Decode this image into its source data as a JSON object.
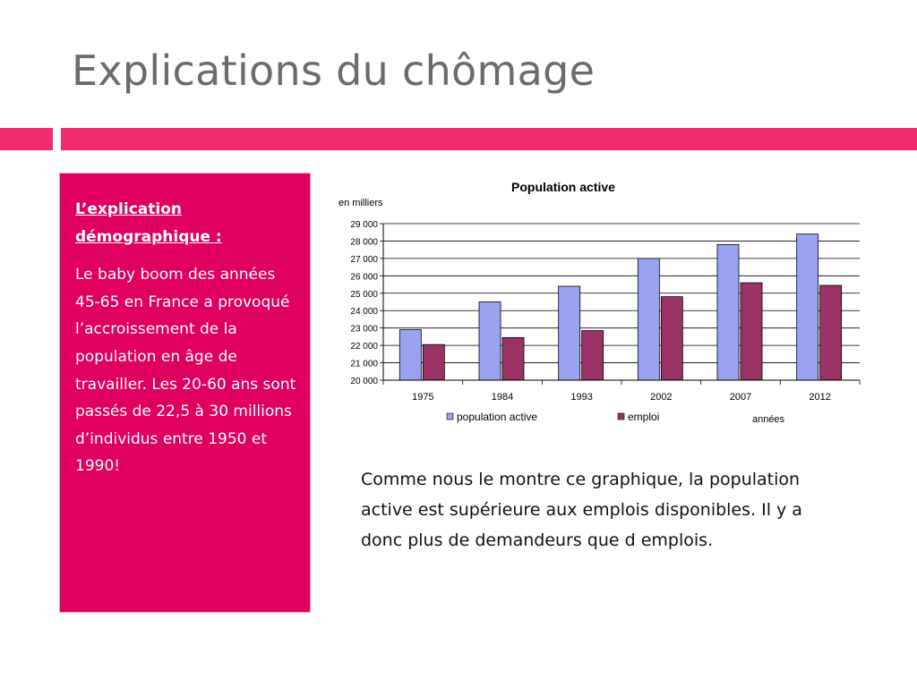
{
  "slide": {
    "title": "Explications du chômage"
  },
  "panel": {
    "heading": "L’explication démographique :",
    "body": "Le baby boom des années 45-65 en France a provoqué l’accroissement de la population en âge de travailler. Les 20-60 ans sont passés de 22,5 à 30 millions d’individus entre 1950 et 1990!"
  },
  "caption": {
    "text": "Comme nous le montre ce graphique, la population active est supérieure aux emplois disponibles. Il y a donc plus de demandeurs que d emplois."
  },
  "colors": {
    "accent": "#f02c6f",
    "panel": "#e0005f",
    "series_active": "#9aa3f0",
    "series_emploi": "#993366"
  },
  "chart_data": {
    "type": "bar",
    "title": "Population active",
    "ylabel": "en milliers",
    "xlabel": "années",
    "categories": [
      "1975",
      "1984",
      "1993",
      "2002",
      "2007",
      "2012"
    ],
    "series": [
      {
        "name": "population active",
        "values": [
          22900,
          24500,
          25400,
          27000,
          27800,
          28400
        ]
      },
      {
        "name": "emploi",
        "values": [
          22050,
          22450,
          22850,
          24800,
          25600,
          25450
        ]
      }
    ],
    "ylim": [
      20000,
      29000
    ],
    "yticks": [
      "20 000",
      "21 000",
      "22 000",
      "23 000",
      "24 000",
      "25 000",
      "26 000",
      "27 000",
      "28 000",
      "29 000"
    ],
    "grid": true,
    "legend": "bottom"
  }
}
